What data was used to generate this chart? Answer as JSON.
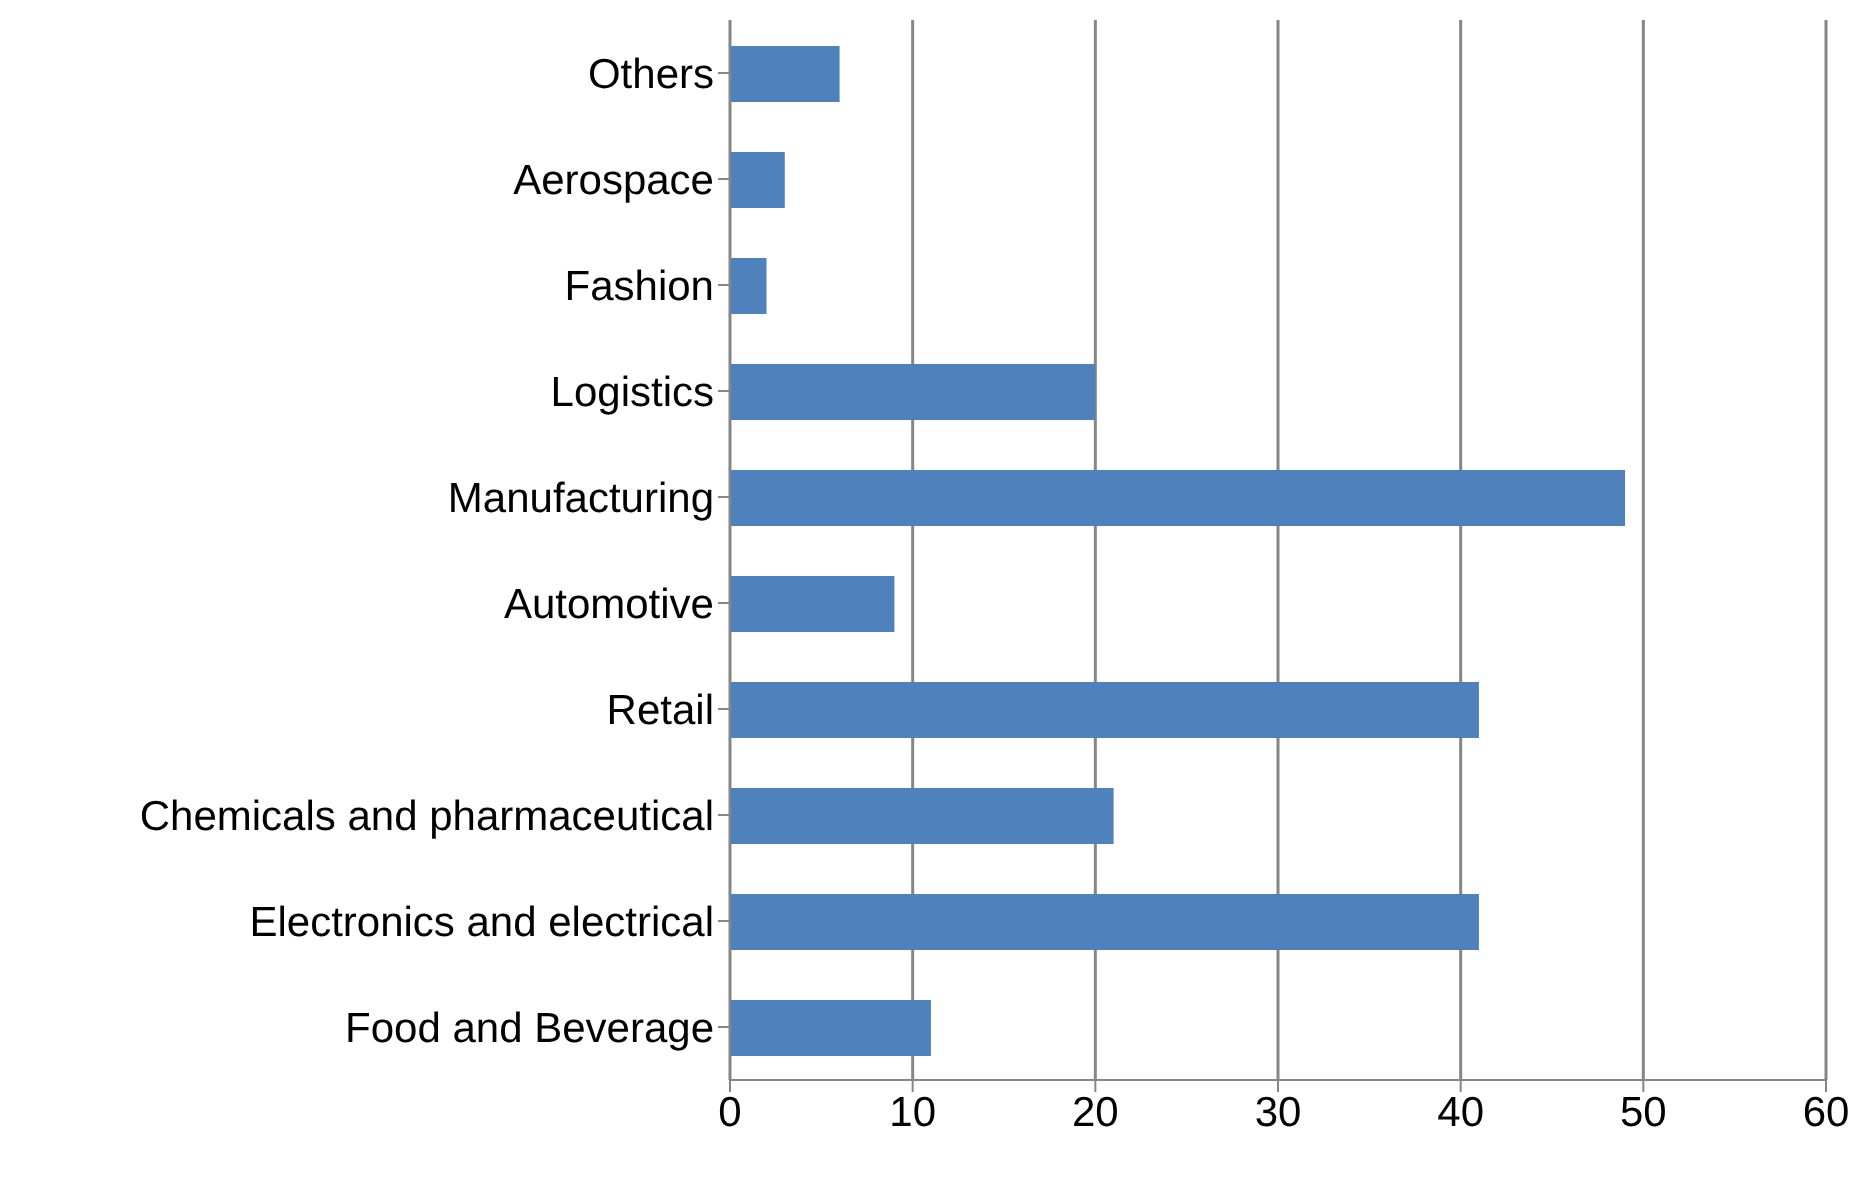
{
  "chart_data": {
    "type": "bar",
    "orientation": "horizontal",
    "categories": [
      "Others",
      "Aerospace",
      "Fashion",
      "Logistics",
      "Manufacturing",
      "Automotive",
      "Retail",
      "Chemicals and pharmaceutical",
      "Electronics and electrical",
      "Food and Beverage"
    ],
    "values": [
      6,
      3,
      2,
      20,
      49,
      9,
      41,
      21,
      41,
      11
    ],
    "color": "#4f81bd",
    "xlim": [
      0,
      60
    ],
    "xticks": [
      0,
      10,
      20,
      30,
      40,
      50,
      60
    ],
    "grid": "x"
  }
}
